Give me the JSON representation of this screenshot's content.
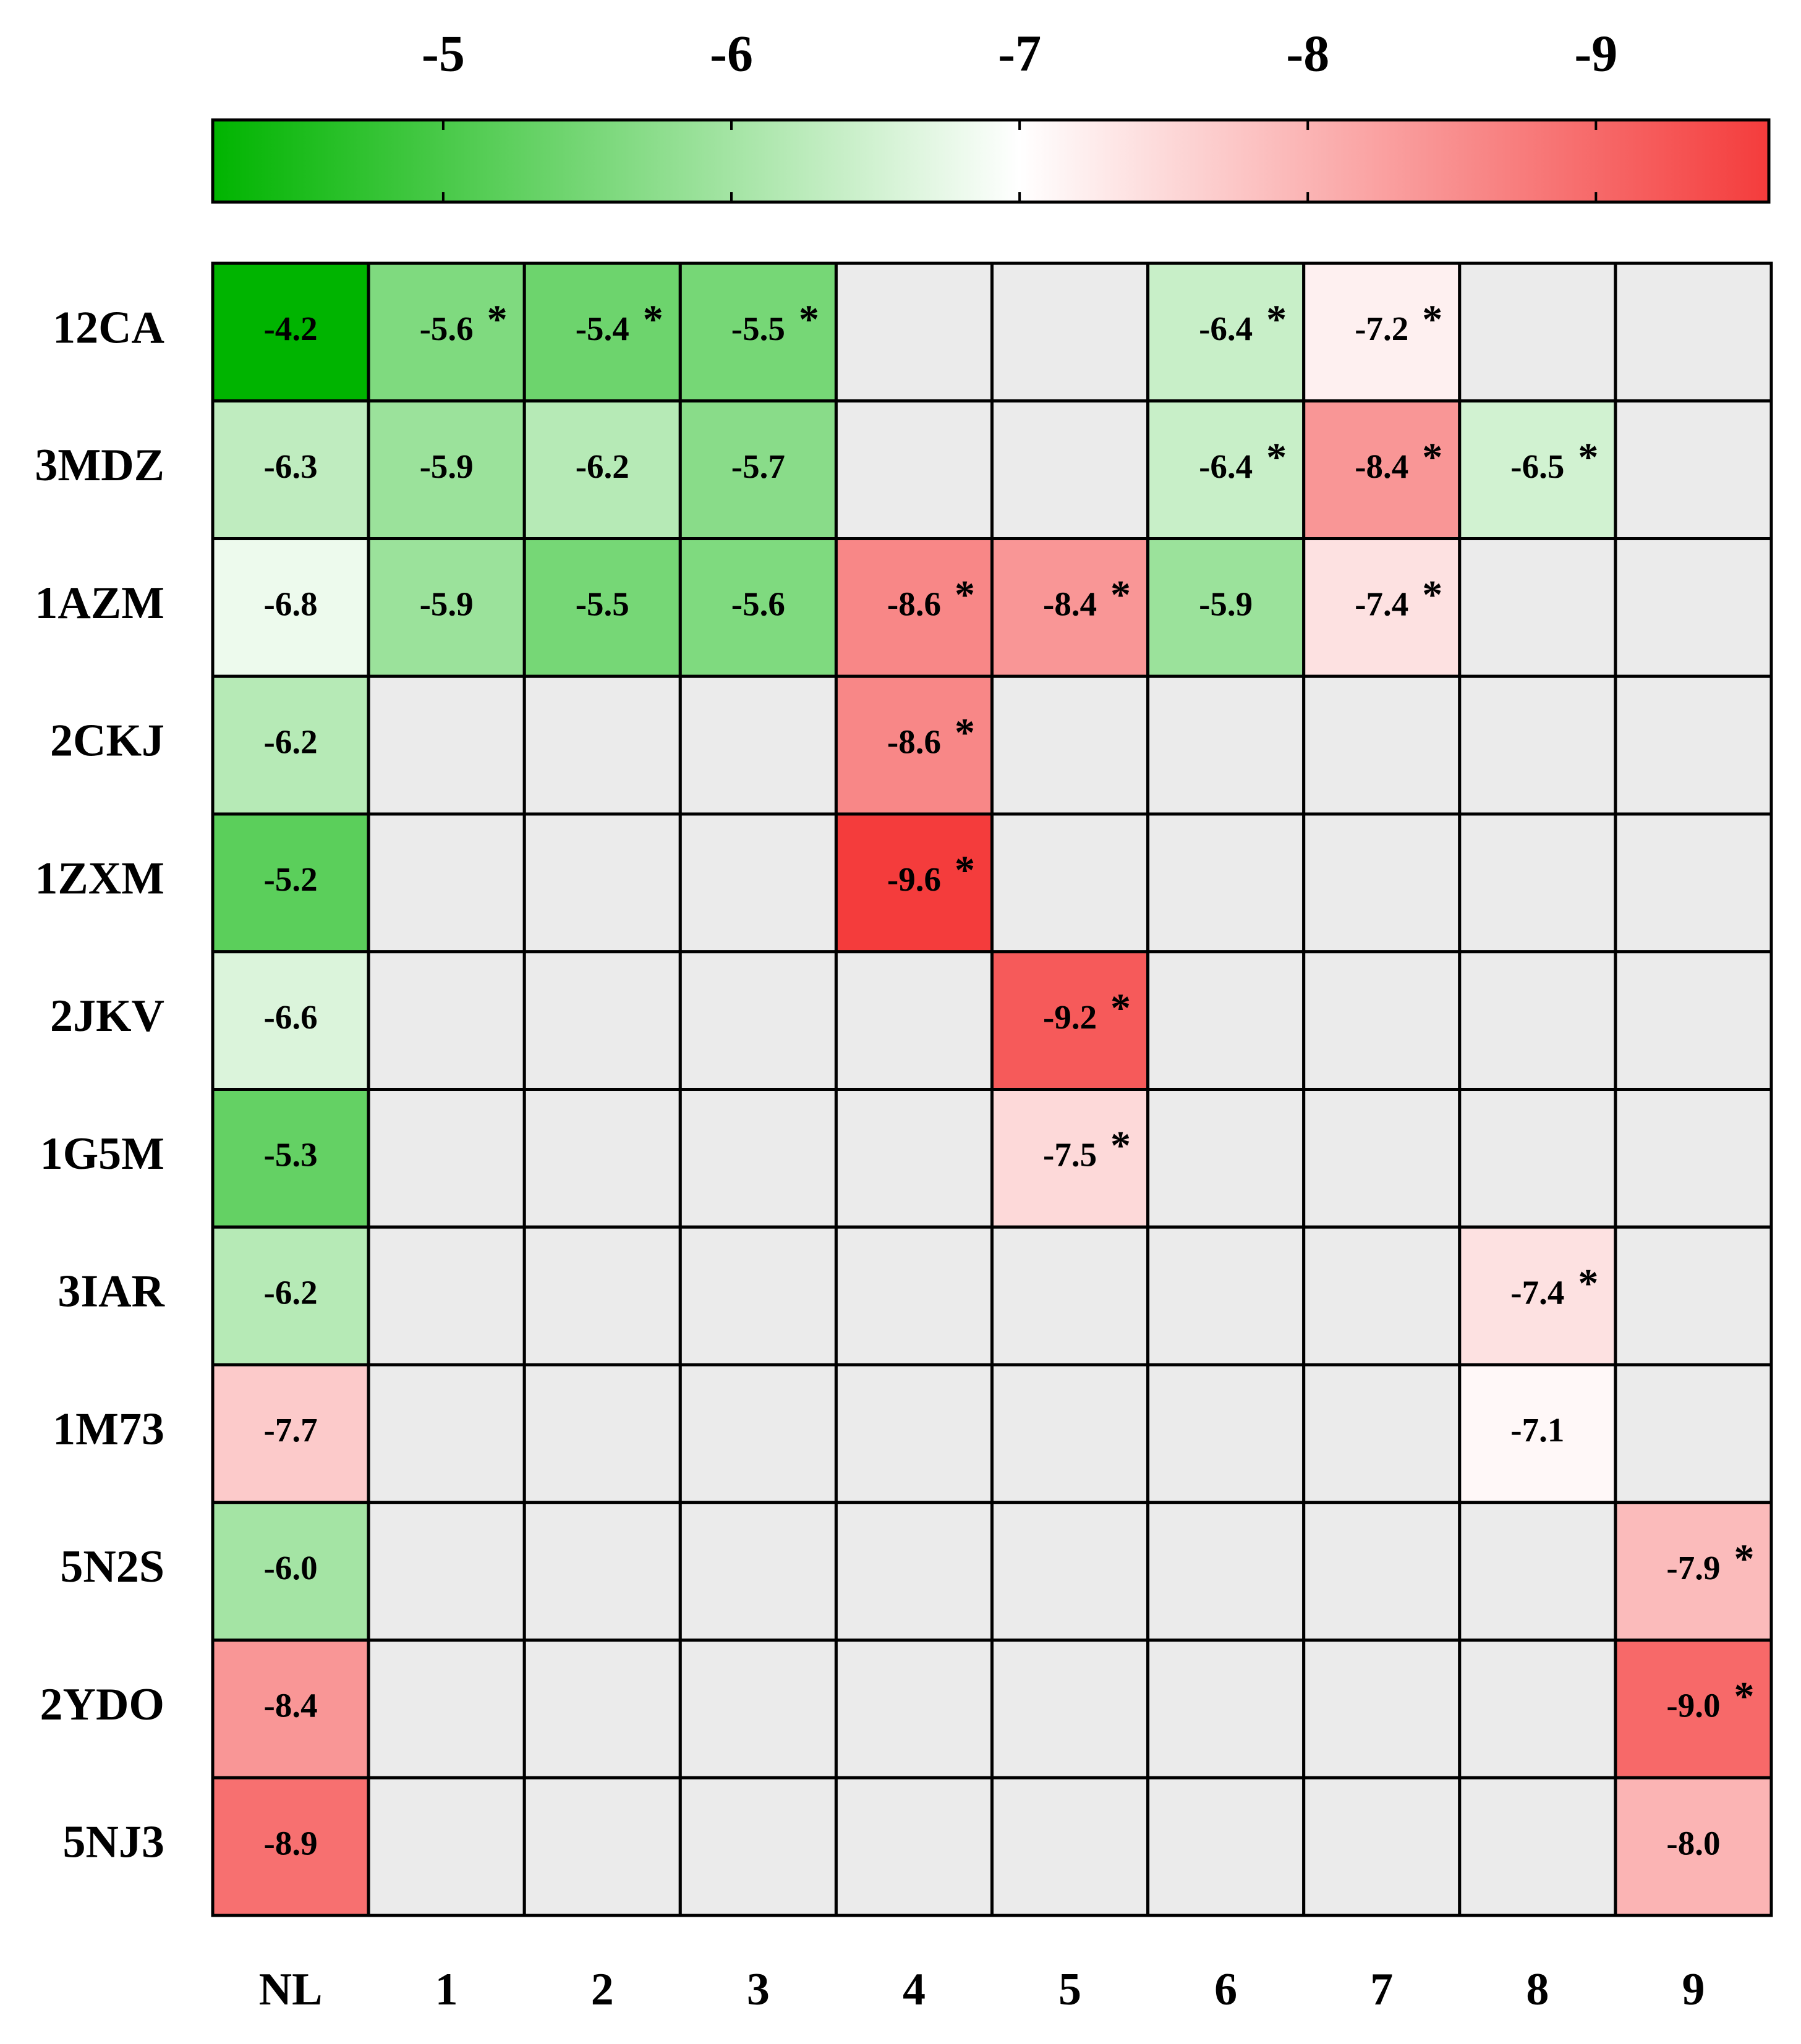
{
  "chart_data": {
    "type": "heatmap",
    "rows": [
      "12CA",
      "3MDZ",
      "1AZM",
      "2CKJ",
      "1ZXM",
      "2JKV",
      "1G5M",
      "3IAR",
      "1M73",
      "5N2S",
      "2YDO",
      "5NJ3"
    ],
    "columns": [
      "NL",
      "1",
      "2",
      "3",
      "4",
      "5",
      "6",
      "7",
      "8",
      "9"
    ],
    "values": [
      [
        -4.2,
        -5.6,
        -5.4,
        -5.5,
        null,
        null,
        -6.4,
        -7.2,
        null,
        null
      ],
      [
        -6.3,
        -5.9,
        -6.2,
        -5.7,
        null,
        null,
        -6.4,
        -8.4,
        -6.5,
        null
      ],
      [
        -6.8,
        -5.9,
        -5.5,
        -5.6,
        -8.6,
        -8.4,
        -5.9,
        -7.4,
        null,
        null
      ],
      [
        -6.2,
        null,
        null,
        null,
        -8.6,
        null,
        null,
        null,
        null,
        null
      ],
      [
        -5.2,
        null,
        null,
        null,
        -9.6,
        null,
        null,
        null,
        null,
        null
      ],
      [
        -6.6,
        null,
        null,
        null,
        null,
        -9.2,
        null,
        null,
        null,
        null
      ],
      [
        -5.3,
        null,
        null,
        null,
        null,
        -7.5,
        null,
        null,
        null,
        null
      ],
      [
        -6.2,
        null,
        null,
        null,
        null,
        null,
        null,
        null,
        -7.4,
        null
      ],
      [
        -7.7,
        null,
        null,
        null,
        null,
        null,
        null,
        null,
        -7.1,
        null
      ],
      [
        -6.0,
        null,
        null,
        null,
        null,
        null,
        null,
        null,
        null,
        -7.9
      ],
      [
        -8.4,
        null,
        null,
        null,
        null,
        null,
        null,
        null,
        null,
        -9.0
      ],
      [
        -8.9,
        null,
        null,
        null,
        null,
        null,
        null,
        null,
        null,
        -8.0
      ]
    ],
    "value_labels": [
      [
        "-4.2",
        "-5.6",
        "-5.4",
        "-5.5",
        null,
        null,
        "-6.4",
        "-7.2",
        null,
        null
      ],
      [
        "-6.3",
        "-5.9",
        "-6.2",
        "-5.7",
        null,
        null,
        "-6.4",
        "-8.4",
        "-6.5",
        null
      ],
      [
        "-6.8",
        "-5.9",
        "-5.5",
        "-5.6",
        "-8.6",
        "-8.4",
        "-5.9",
        "-7.4",
        null,
        null
      ],
      [
        "-6.2",
        null,
        null,
        null,
        "-8.6",
        null,
        null,
        null,
        null,
        null
      ],
      [
        "-5.2",
        null,
        null,
        null,
        "-9.6",
        null,
        null,
        null,
        null,
        null
      ],
      [
        "-6.6",
        null,
        null,
        null,
        null,
        "-9.2",
        null,
        null,
        null,
        null
      ],
      [
        "-5.3",
        null,
        null,
        null,
        null,
        "-7.5",
        null,
        null,
        null,
        null
      ],
      [
        "-6.2",
        null,
        null,
        null,
        null,
        null,
        null,
        null,
        "-7.4",
        null
      ],
      [
        "-7.7",
        null,
        null,
        null,
        null,
        null,
        null,
        null,
        "-7.1",
        null
      ],
      [
        "-6.0",
        null,
        null,
        null,
        null,
        null,
        null,
        null,
        null,
        "-7.9"
      ],
      [
        "-8.4",
        null,
        null,
        null,
        null,
        null,
        null,
        null,
        null,
        "-9.0"
      ],
      [
        "-8.9",
        null,
        null,
        null,
        null,
        null,
        null,
        null,
        null,
        "-8.0"
      ]
    ],
    "marker": "*",
    "marked": [
      [
        false,
        true,
        true,
        true,
        false,
        false,
        true,
        true,
        false,
        false
      ],
      [
        false,
        false,
        false,
        false,
        false,
        false,
        true,
        true,
        true,
        false
      ],
      [
        false,
        false,
        false,
        false,
        true,
        true,
        false,
        true,
        false,
        false
      ],
      [
        false,
        false,
        false,
        false,
        true,
        false,
        false,
        false,
        false,
        false
      ],
      [
        false,
        false,
        false,
        false,
        true,
        false,
        false,
        false,
        false,
        false
      ],
      [
        false,
        false,
        false,
        false,
        false,
        true,
        false,
        false,
        false,
        false
      ],
      [
        false,
        false,
        false,
        false,
        false,
        true,
        false,
        false,
        false,
        false
      ],
      [
        false,
        false,
        false,
        false,
        false,
        false,
        false,
        false,
        true,
        false
      ],
      [
        false,
        false,
        false,
        false,
        false,
        false,
        false,
        false,
        false,
        false
      ],
      [
        false,
        false,
        false,
        false,
        false,
        false,
        false,
        false,
        false,
        true
      ],
      [
        false,
        false,
        false,
        false,
        false,
        false,
        false,
        false,
        false,
        true
      ],
      [
        false,
        false,
        false,
        false,
        false,
        false,
        false,
        false,
        false,
        false
      ]
    ],
    "missing_color": "#ebebeb",
    "colormap": [
      "#00b400",
      "#ffffff",
      "#f43c3c"
    ],
    "cmid": -7,
    "clim": [
      -4.2,
      -9.6
    ],
    "cticks": [
      -5,
      -6,
      -7,
      -8,
      -9
    ]
  }
}
